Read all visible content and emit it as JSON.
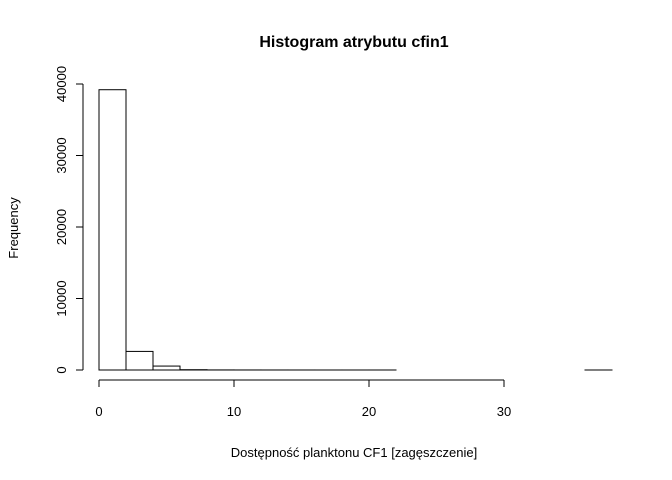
{
  "chart_data": {
    "type": "bar",
    "title": "Histogram atrybutu cfin1",
    "xlabel": "Dostępność planktonu CF1 [zagęszczenie]",
    "ylabel": "Frequency",
    "bins": [
      {
        "x0": 0,
        "x1": 2,
        "count": 39200
      },
      {
        "x0": 2,
        "x1": 4,
        "count": 2600
      },
      {
        "x0": 4,
        "x1": 6,
        "count": 550
      },
      {
        "x0": 6,
        "x1": 8,
        "count": 40
      },
      {
        "x0": 8,
        "x1": 10,
        "count": 10
      },
      {
        "x0": 10,
        "x1": 12,
        "count": 5
      },
      {
        "x0": 12,
        "x1": 14,
        "count": 3
      },
      {
        "x0": 14,
        "x1": 16,
        "count": 2
      },
      {
        "x0": 16,
        "x1": 18,
        "count": 1
      },
      {
        "x0": 18,
        "x1": 20,
        "count": 1
      },
      {
        "x0": 20,
        "x1": 22,
        "count": 1
      },
      {
        "x0": 22,
        "x1": 24,
        "count": 0
      },
      {
        "x0": 24,
        "x1": 26,
        "count": 0
      },
      {
        "x0": 26,
        "x1": 28,
        "count": 0
      },
      {
        "x0": 28,
        "x1": 30,
        "count": 0
      },
      {
        "x0": 30,
        "x1": 32,
        "count": 0
      },
      {
        "x0": 32,
        "x1": 34,
        "count": 0
      },
      {
        "x0": 34,
        "x1": 36,
        "count": 0
      },
      {
        "x0": 36,
        "x1": 38,
        "count": 1
      }
    ],
    "xlim": [
      0,
      38
    ],
    "ylim": [
      0,
      40000
    ],
    "xticks": [
      0,
      10,
      20,
      30
    ],
    "yticks": [
      0,
      10000,
      20000,
      30000,
      40000
    ],
    "grid": false,
    "legend": "none"
  }
}
